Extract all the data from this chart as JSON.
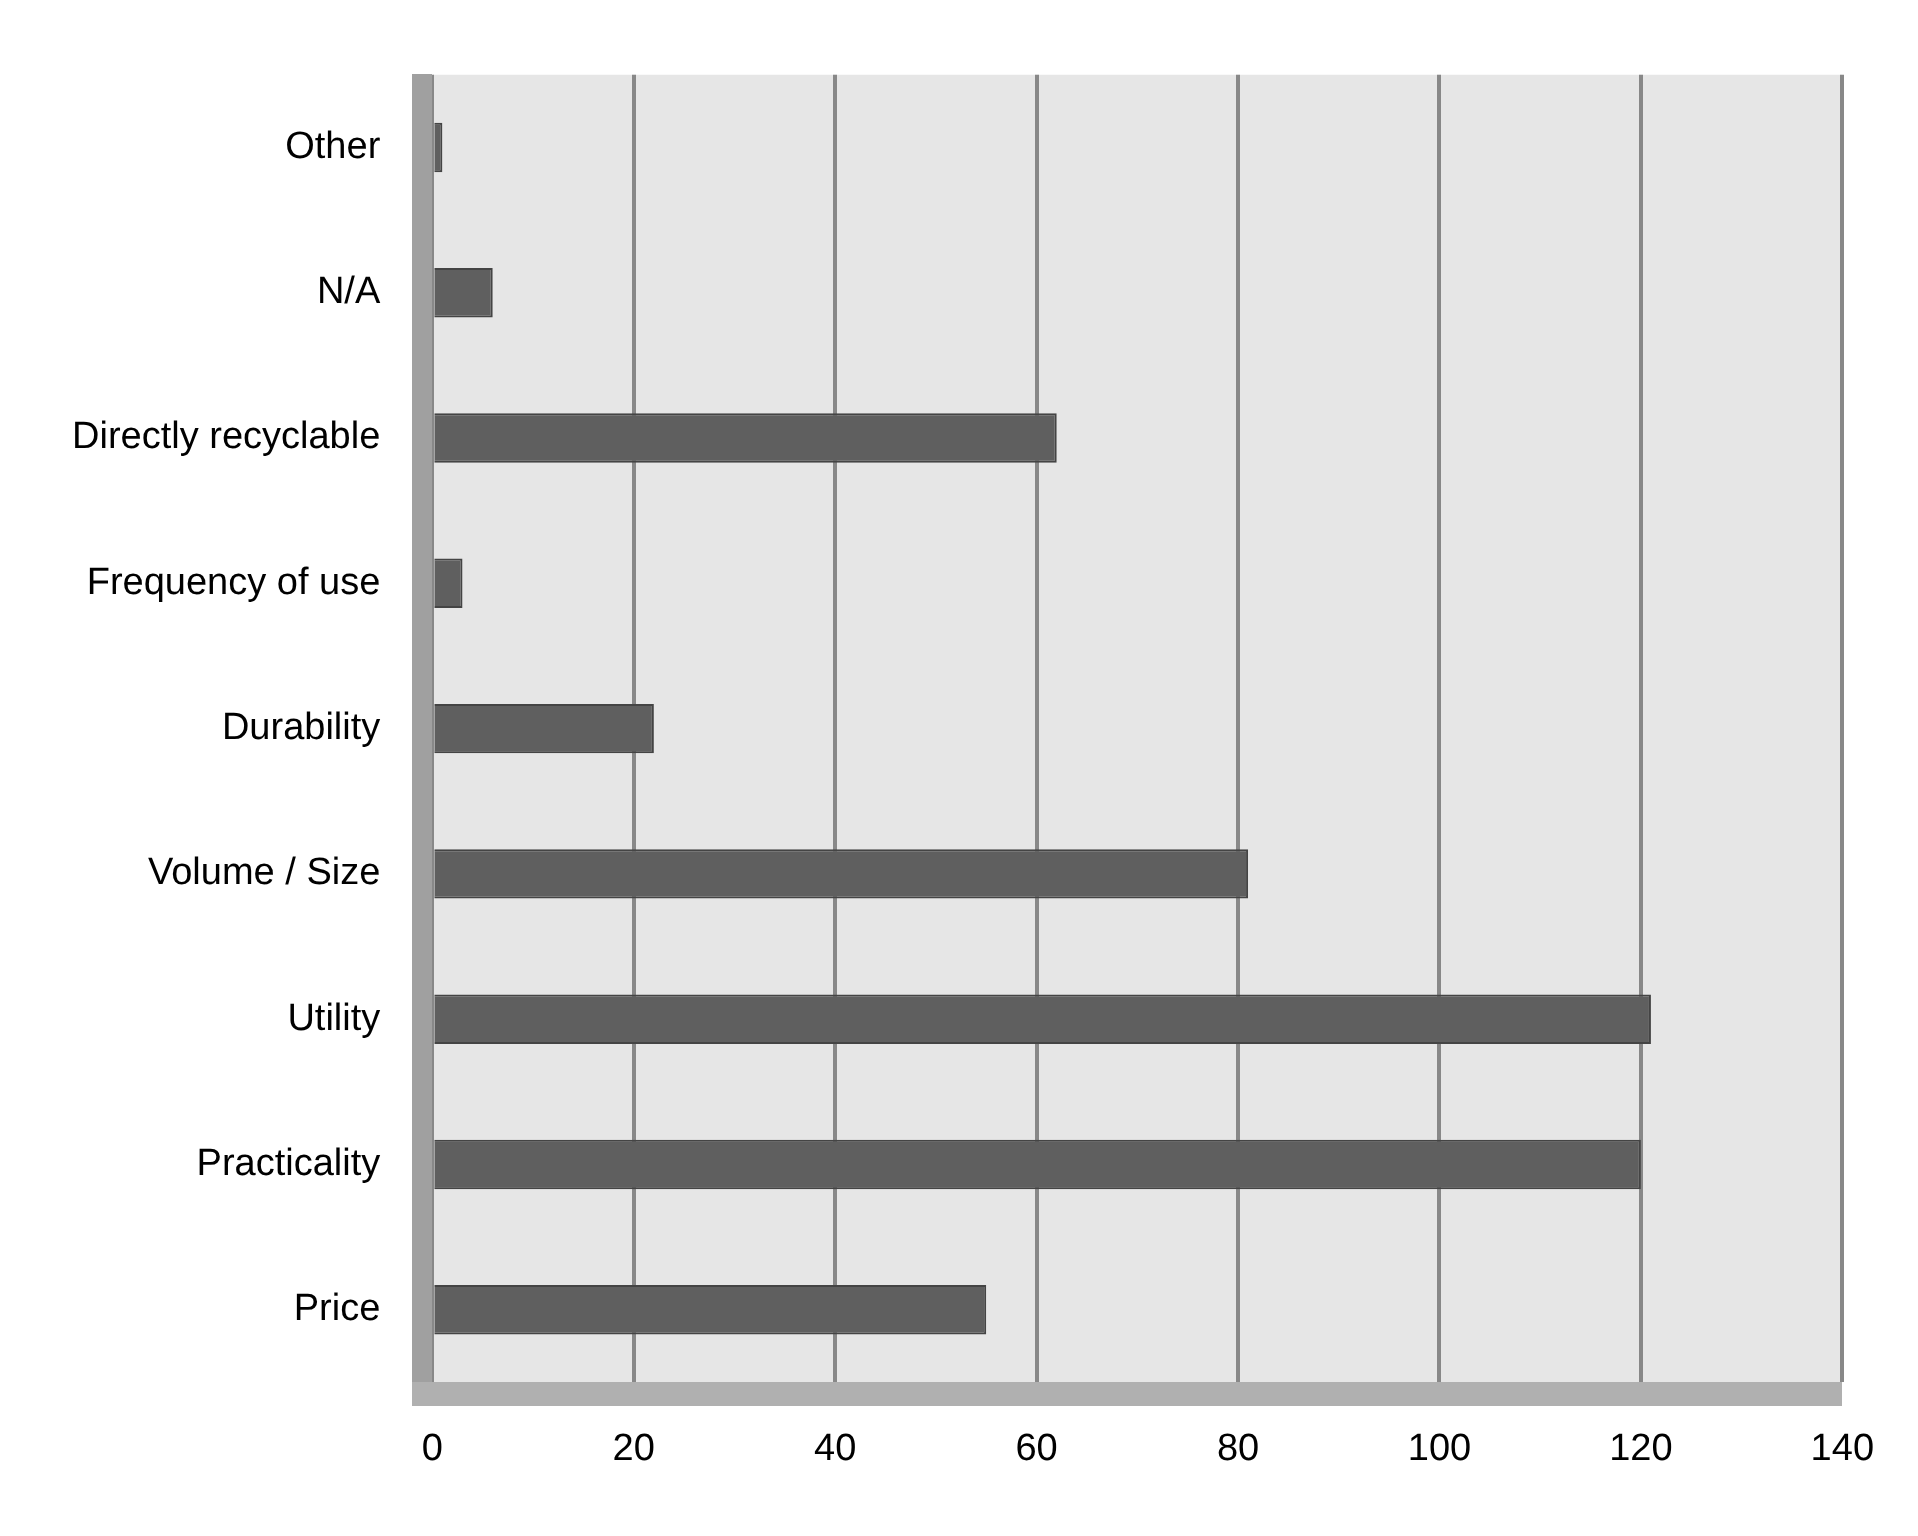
{
  "chart_data": {
    "type": "bar",
    "orientation": "horizontal",
    "categories": [
      "Other",
      "N/A",
      "Directly recyclable",
      "Frequency of use",
      "Durability",
      "Volume / Size",
      "Utility",
      "Practicality",
      "Price"
    ],
    "values": [
      1,
      6,
      62,
      3,
      22,
      81,
      121,
      120,
      55
    ],
    "color": "#5f5f5f",
    "xlim": [
      0,
      140
    ],
    "xticks": [
      0,
      20,
      40,
      60,
      80,
      100,
      120,
      140
    ],
    "grid": "x"
  }
}
